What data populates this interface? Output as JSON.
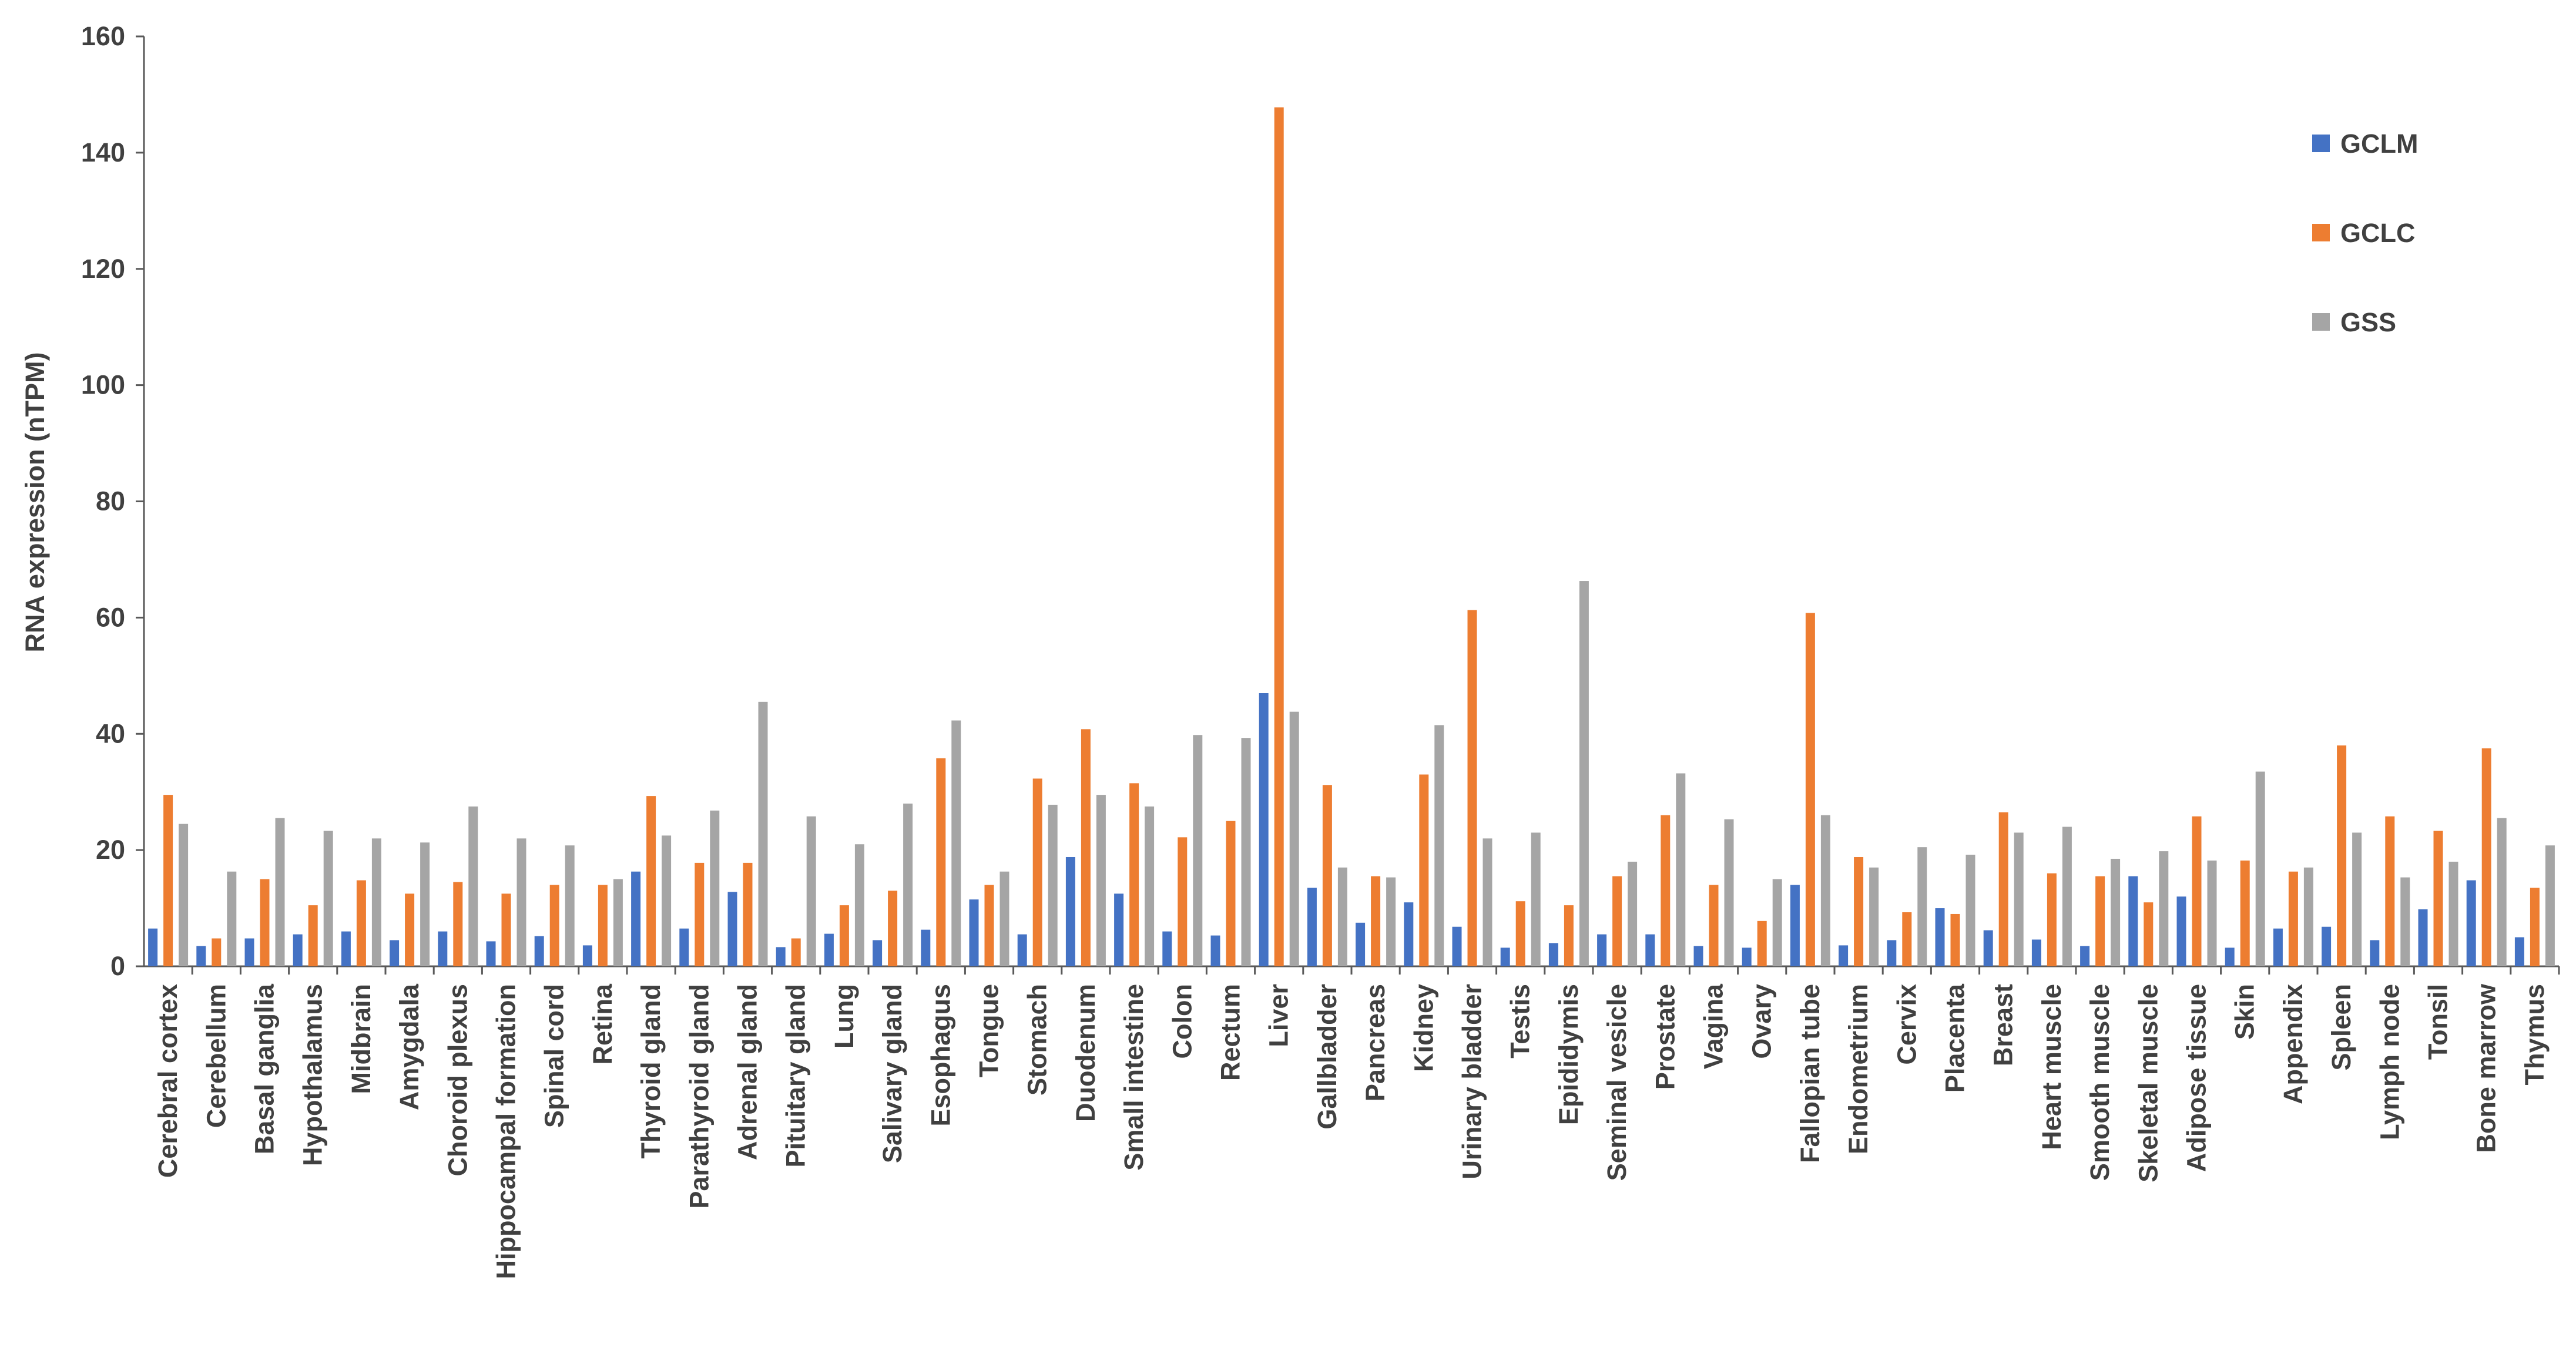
{
  "chart_data": {
    "type": "bar",
    "title": "",
    "xlabel": "",
    "ylabel": "RNA expression (nTPM)",
    "ylim": [
      0,
      160
    ],
    "yticks": [
      0,
      20,
      40,
      60,
      80,
      100,
      120,
      140,
      160
    ],
    "grid": false,
    "legend_position": "right",
    "categories": [
      "Cerebral cortex",
      "Cerebellum",
      "Basal ganglia",
      "Hypothalamus",
      "Midbrain",
      "Amygdala",
      "Choroid plexus",
      "Hippocampal formation",
      "Spinal cord",
      "Retina",
      "Thyroid gland",
      "Parathyroid gland",
      "Adrenal gland",
      "Pituitary gland",
      "Lung",
      "Salivary gland",
      "Esophagus",
      "Tongue",
      "Stomach",
      "Duodenum",
      "Small intestine",
      "Colon",
      "Rectum",
      "Liver",
      "Gallbladder",
      "Pancreas",
      "Kidney",
      "Urinary bladder",
      "Testis",
      "Epididymis",
      "Seminal vesicle",
      "Prostate",
      "Vagina",
      "Ovary",
      "Fallopian tube",
      "Endometrium",
      "Cervix",
      "Placenta",
      "Breast",
      "Heart muscle",
      "Smooth muscle",
      "Skeletal muscle",
      "Adipose tissue",
      "Skin",
      "Appendix",
      "Spleen",
      "Lymph node",
      "Tonsil",
      "Bone marrow",
      "Thymus"
    ],
    "series": [
      {
        "name": "GCLM",
        "color": "#4472C4",
        "values": [
          6.5,
          3.5,
          4.8,
          5.5,
          6,
          4.5,
          6,
          4.3,
          5.2,
          3.6,
          16.3,
          6.5,
          12.8,
          3.3,
          5.6,
          4.5,
          6.3,
          11.5,
          5.5,
          18.8,
          12.5,
          6,
          5.3,
          47,
          13.5,
          7.5,
          11,
          6.8,
          3.2,
          4,
          5.5,
          5.5,
          3.5,
          3.2,
          14,
          3.6,
          4.5,
          10,
          6.2,
          4.6,
          3.5,
          15.5,
          12,
          3.2,
          6.5,
          6.8,
          4.5,
          9.8,
          14.8,
          5
        ]
      },
      {
        "name": "GCLC",
        "color": "#ED7D31",
        "values": [
          29.5,
          4.8,
          15,
          10.5,
          14.8,
          12.5,
          14.5,
          12.5,
          14,
          14,
          29.3,
          17.8,
          17.8,
          4.8,
          10.5,
          13,
          35.8,
          14,
          32.3,
          40.8,
          31.5,
          22.2,
          25,
          147.8,
          31.2,
          15.5,
          33,
          61.3,
          11.2,
          10.5,
          15.5,
          26,
          14,
          7.8,
          60.8,
          18.8,
          9.3,
          9,
          26.5,
          16,
          15.5,
          11,
          25.8,
          18.2,
          16.3,
          38,
          25.8,
          23.3,
          37.5,
          13.5
        ]
      },
      {
        "name": "GSS",
        "color": "#A5A5A5",
        "values": [
          24.5,
          16.3,
          25.5,
          23.3,
          22,
          21.3,
          27.5,
          22,
          20.8,
          15,
          22.5,
          26.8,
          45.5,
          25.8,
          21,
          28,
          42.3,
          16.3,
          27.8,
          29.5,
          27.5,
          39.8,
          39.3,
          43.8,
          17,
          15.3,
          41.5,
          22,
          23,
          66.3,
          18,
          33.2,
          25.3,
          15,
          26,
          17,
          20.5,
          19.2,
          23,
          24,
          18.5,
          19.8,
          18.2,
          33.5,
          17,
          23,
          15.3,
          18,
          25.5,
          20.8
        ]
      }
    ]
  }
}
